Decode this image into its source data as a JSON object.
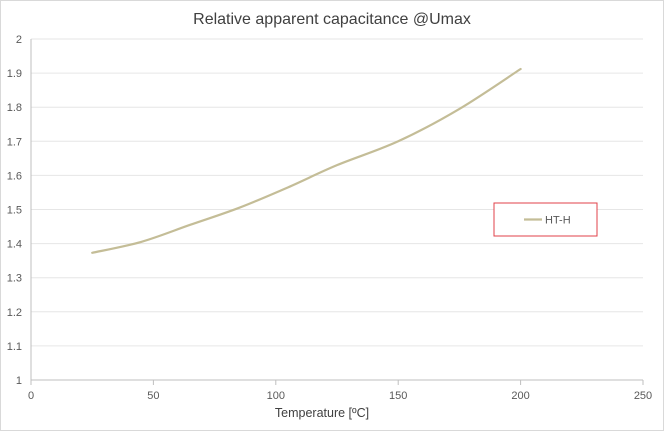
{
  "chart_data": {
    "type": "line",
    "title": "Relative  apparent capacitance @Umax",
    "xlabel": "Temperature [ºC]",
    "ylabel": "",
    "xlim": [
      0,
      250
    ],
    "ylim": [
      1,
      2
    ],
    "x_ticks": [
      0,
      50,
      100,
      150,
      200,
      250
    ],
    "y_ticks": [
      1,
      1.1,
      1.2,
      1.3,
      1.4,
      1.5,
      1.6,
      1.7,
      1.8,
      1.9,
      2
    ],
    "grid": true,
    "legend_position": "right",
    "series": [
      {
        "name": "HT-H",
        "color": "#c4bd97",
        "x": [
          25,
          45,
          65,
          85,
          105,
          125,
          150,
          175,
          200
        ],
        "y": [
          1.373,
          1.405,
          1.455,
          1.505,
          1.565,
          1.63,
          1.7,
          1.795,
          1.912
        ]
      }
    ],
    "legend_border_color": "#e0404a"
  }
}
